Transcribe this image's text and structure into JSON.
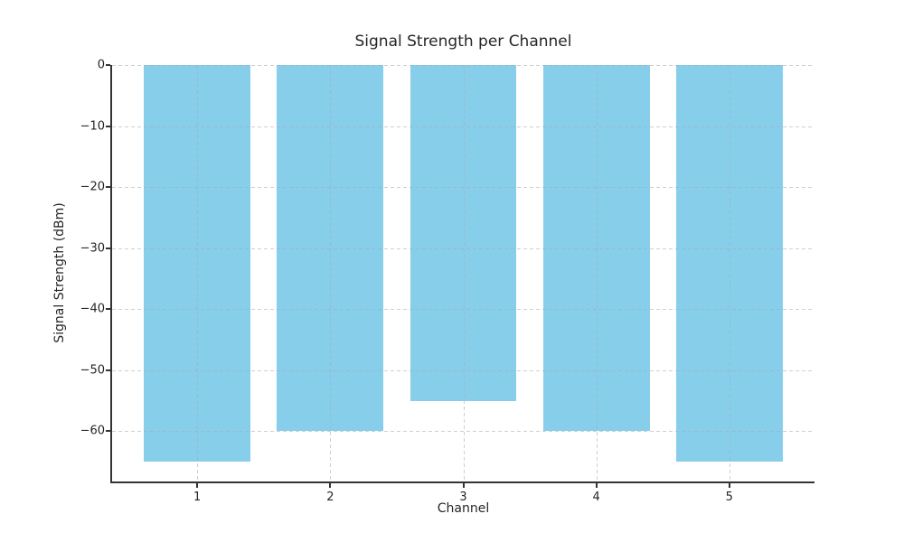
{
  "chart_data": {
    "type": "bar",
    "title": "Signal Strength per Channel",
    "xlabel": "Channel",
    "ylabel": "Signal Strength (dBm)",
    "categories": [
      "1",
      "2",
      "3",
      "4",
      "5"
    ],
    "x_positions": [
      1,
      2,
      3,
      4,
      5
    ],
    "values": [
      -65,
      -60,
      -55,
      -60,
      -65
    ],
    "bar_width": 0.8,
    "xlim": [
      0.36,
      5.64
    ],
    "ylim": [
      -68.25,
      0
    ],
    "yticks": [
      0,
      -10,
      -20,
      -30,
      -40,
      -50,
      -60
    ],
    "ytick_labels": [
      "0",
      "−10",
      "−20",
      "−30",
      "−40",
      "−50",
      "−60"
    ],
    "grid": "dashed, light gray, horizontal and vertical, drawn over bars",
    "legend_position": "none",
    "colors": {
      "bar": "#87CEEB",
      "grid": "#cccccc",
      "spine": "#333333",
      "text": "#262626",
      "background": "#ffffff"
    }
  }
}
